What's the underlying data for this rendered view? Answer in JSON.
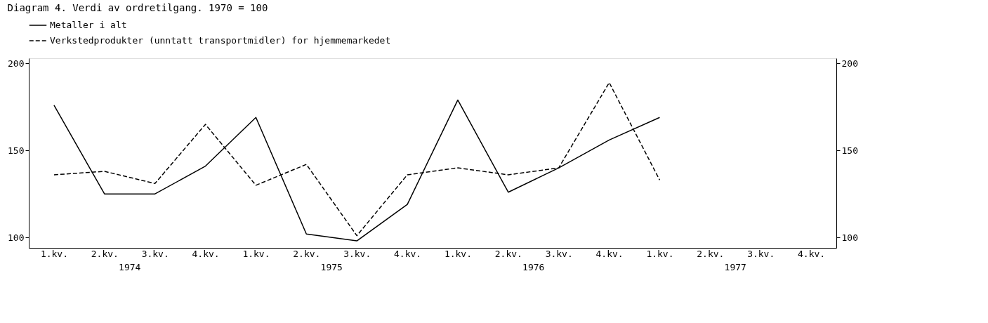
{
  "chart_data": {
    "type": "line",
    "title": "Diagram 4.  Verdi av ordretilgang.  1970 = 100",
    "categories": [
      "1.kv.",
      "2.kv.",
      "3.kv.",
      "4.kv.",
      "1.kv.",
      "2.kv.",
      "3.kv.",
      "4.kv.",
      "1.kv.",
      "2.kv.",
      "3.kv.",
      "4.kv.",
      "1.kv.",
      "2.kv.",
      "3.kv.",
      "4.kv."
    ],
    "series": [
      {
        "name": "Metaller i alt",
        "color": "#000000",
        "line_style": "solid",
        "values": [
          176,
          125,
          125,
          141,
          169,
          102,
          98,
          119,
          179,
          126,
          140,
          156,
          169,
          null,
          null,
          null
        ]
      },
      {
        "name": "Verkstedprodukter (unntatt transportmidler) for hjemmemarkedet",
        "color": "#000000",
        "line_style": "dashed",
        "values": [
          136,
          138,
          131,
          165,
          130,
          142,
          101,
          136,
          140,
          136,
          140,
          189,
          133,
          null,
          null,
          null
        ]
      }
    ],
    "annotations": [
      "1974",
      "1975",
      "1976",
      "1977"
    ],
    "ylim": [
      94,
      203
    ],
    "yticks": [
      100,
      150,
      200
    ],
    "y2lim": [
      94,
      203
    ],
    "y2ticks": [
      100,
      150,
      200
    ],
    "grid": false,
    "legend": "top left",
    "marker": "none"
  }
}
